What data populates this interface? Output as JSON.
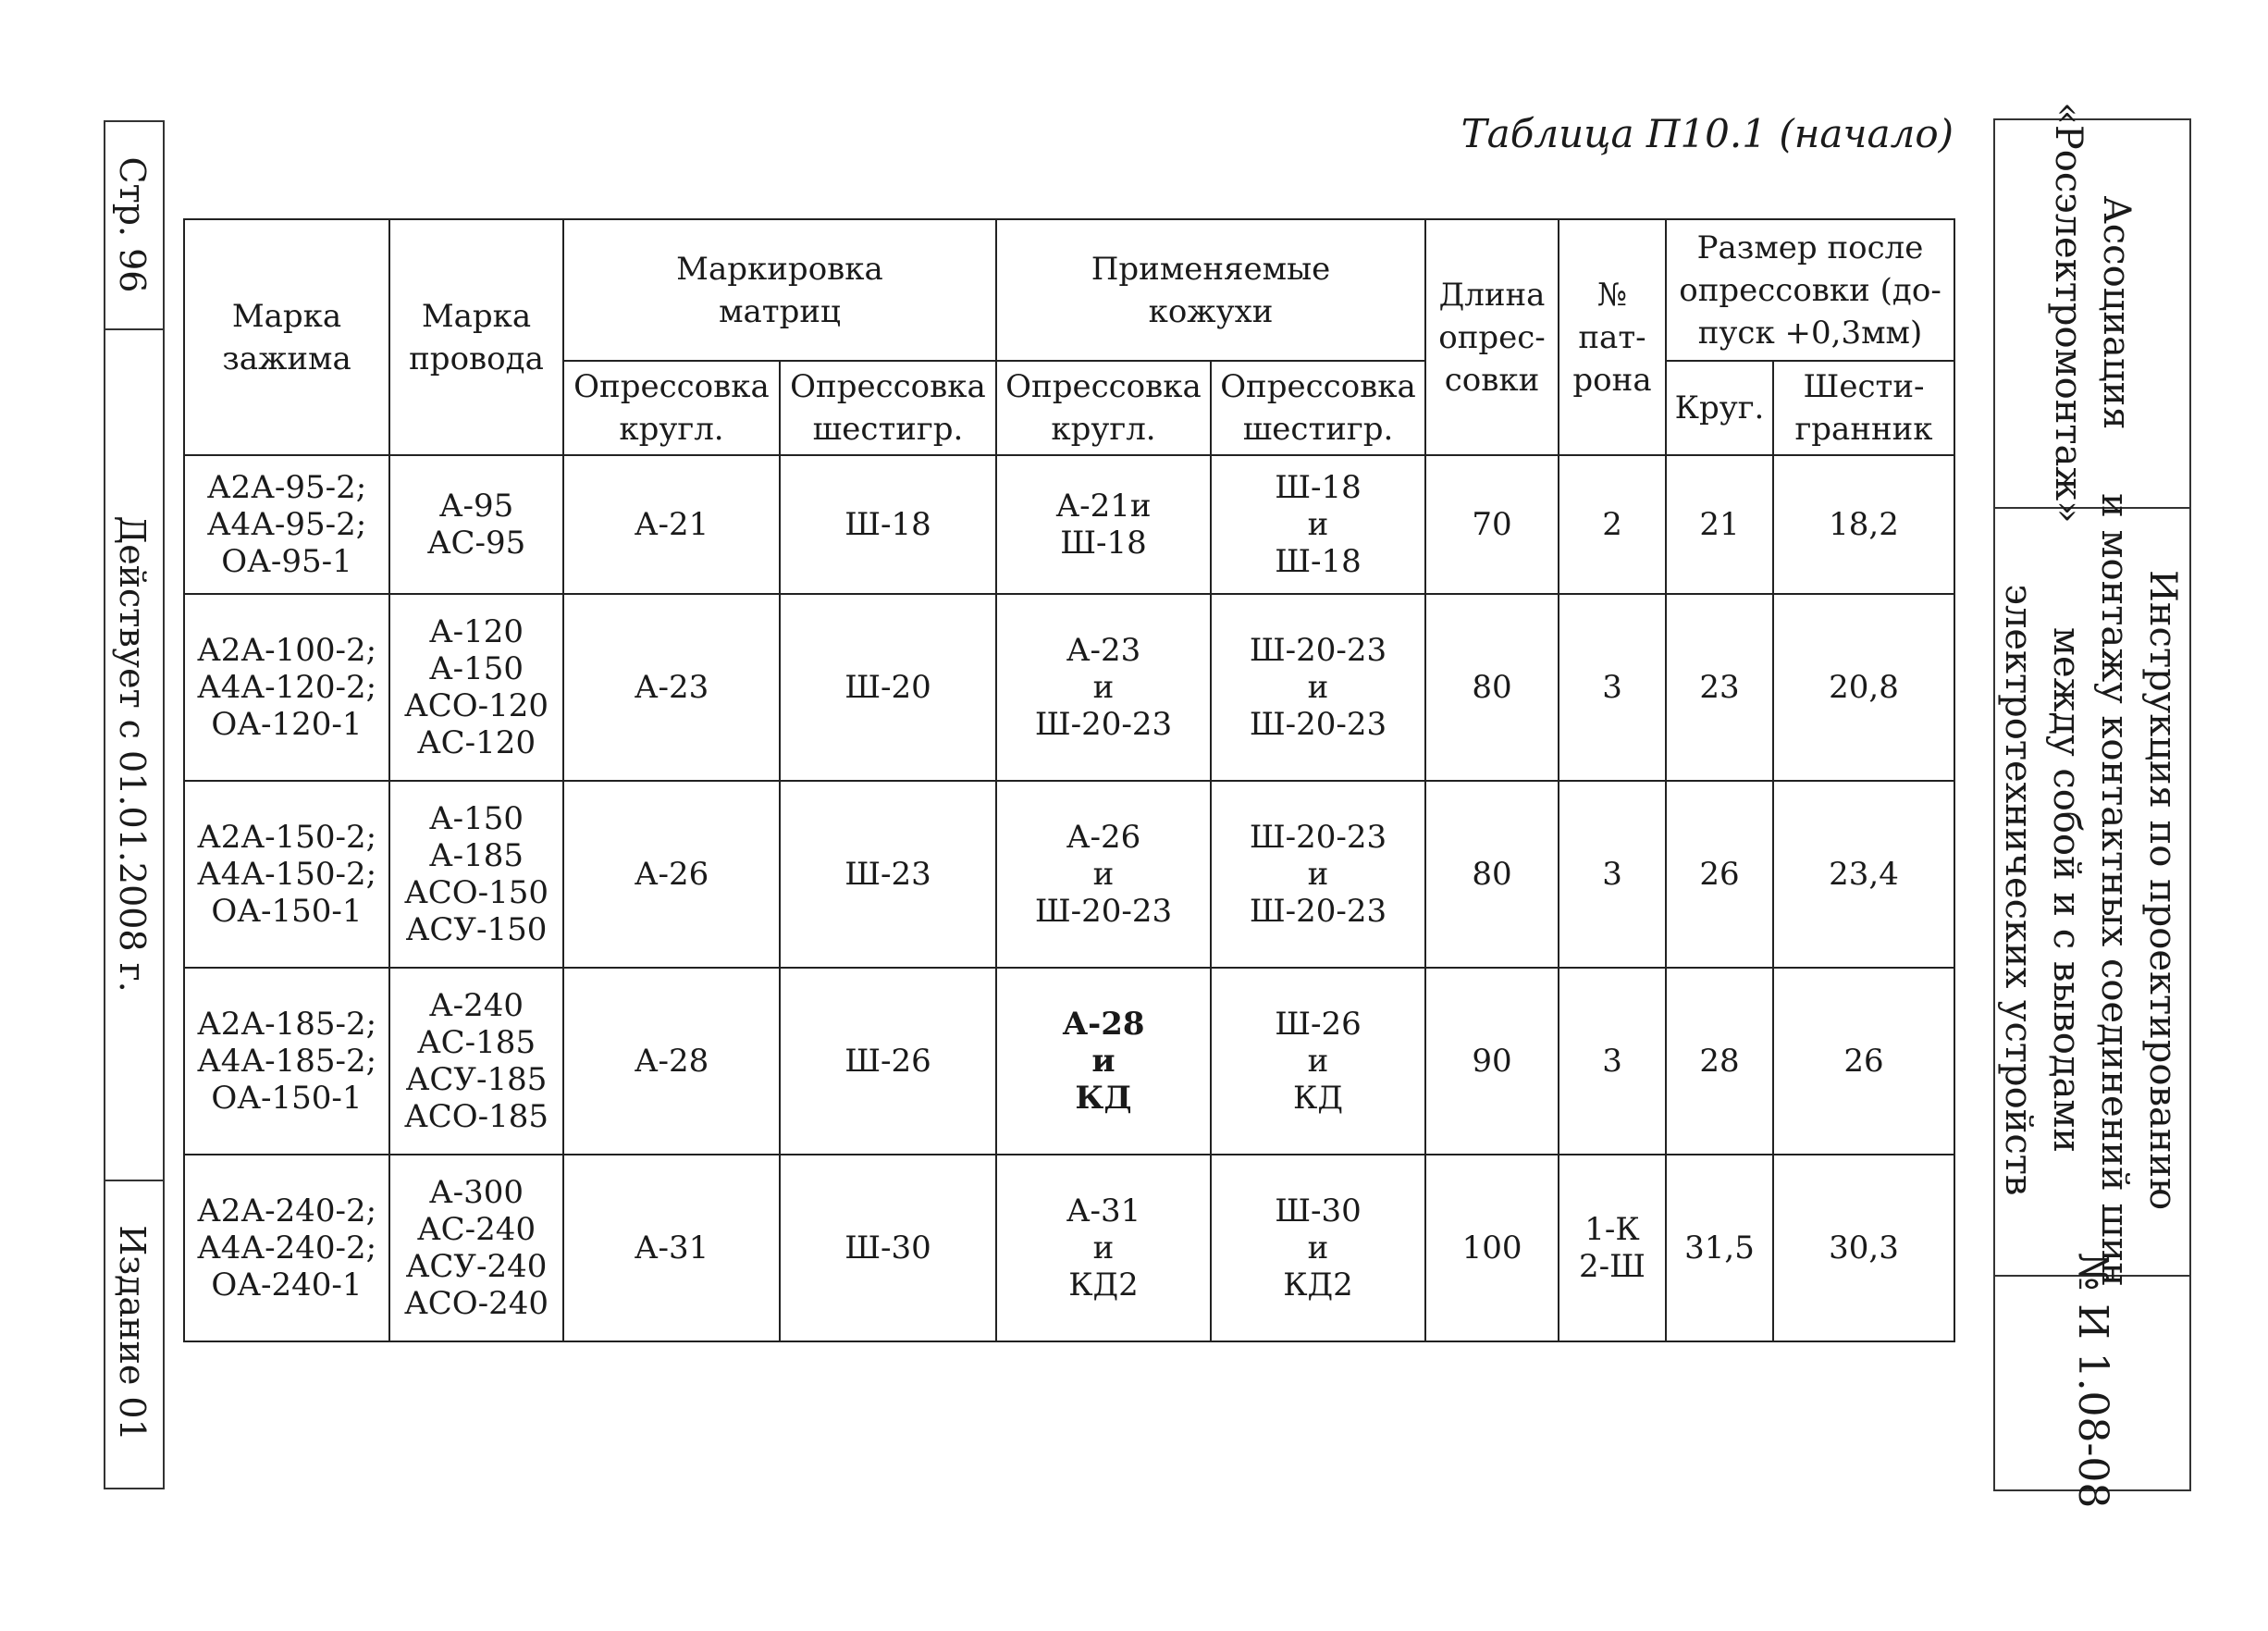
{
  "left_side": {
    "page": "Стр. 96",
    "valid_from": "Действует с 01.01.2008 г.",
    "edition": "Издание 01"
  },
  "right_side": {
    "organization_line1": "Ассоциация",
    "organization_line2": "«Росэлектромонтаж»",
    "title_line1": "Инструкция по проектированию",
    "title_line2": "и монтажу контактных соединений шин",
    "title_line3": "между собой и с выводами",
    "title_line4": "электротехнических устройств",
    "doc_number": "№ И 1.08-08"
  },
  "caption": "Таблица П10.1 (начало)",
  "table": {
    "headers": {
      "clamp": "Марка\nзажима",
      "wire": "Марка\nпровода",
      "dies_group": "Маркировка\nматриц",
      "dies_round": "Опрессовка\nкругл.",
      "dies_hex": "Опрессовка\nшестигр.",
      "sleeves_group": "Применяемые\nкожухи",
      "sleeves_round": "Опрессовка\nкругл.",
      "sleeves_hex": "Опрессовка\nшестигр.",
      "length": "Длина\nопрес-\nсовки",
      "cartridge": "№\nпат-\nрона",
      "size_group": "Размер после\nопрессовки (до-\nпуск +0,3мм)",
      "size_round": "Круг.",
      "size_hex": "Шести-\nгранник"
    },
    "rows": [
      {
        "clamp": "А2А-95-2;\nА4А-95-2;\nОА-95-1",
        "wire": "А-95\nАС-95",
        "dies_round": "А-21",
        "dies_hex": "Ш-18",
        "sleeves_round": "А-21и\nШ-18",
        "sleeves_hex": "Ш-18\nи\nШ-18",
        "length": "70",
        "cartridge": "2",
        "size_round": "21",
        "size_hex": "18,2"
      },
      {
        "clamp": "А2А-100-2;\nА4А-120-2;\nОА-120-1",
        "wire": "А-120\nА-150\nАСО-120\nАС-120",
        "dies_round": "А-23",
        "dies_hex": "Ш-20",
        "sleeves_round": "А-23\nи\nШ-20-23",
        "sleeves_hex": "Ш-20-23\nи\nШ-20-23",
        "length": "80",
        "cartridge": "3",
        "size_round": "23",
        "size_hex": "20,8"
      },
      {
        "clamp": "А2А-150-2;\nА4А-150-2;\nОА-150-1",
        "wire": "А-150\nА-185\nАСО-150\nАСУ-150",
        "dies_round": "А-26",
        "dies_hex": "Ш-23",
        "sleeves_round": "А-26\nи\nШ-20-23",
        "sleeves_hex": "Ш-20-23\nи\nШ-20-23",
        "length": "80",
        "cartridge": "3",
        "size_round": "26",
        "size_hex": "23,4"
      },
      {
        "clamp": "А2А-185-2;\nА4А-185-2;\nОА-150-1",
        "wire": "А-240\nАС-185\nАСУ-185\nАСО-185",
        "dies_round": "А-28",
        "dies_hex": "Ш-26",
        "sleeves_round": "А-28\nи\nКД",
        "sleeves_hex": "Ш-26\nи\nКД",
        "length": "90",
        "cartridge": "3",
        "size_round": "28",
        "size_hex": "26"
      },
      {
        "clamp": "А2А-240-2;\nА4А-240-2;\nОА-240-1",
        "wire": "А-300\nАС-240\nАСУ-240\nАСО-240",
        "dies_round": "А-31",
        "dies_hex": "Ш-30",
        "sleeves_round": "А-31\nи\nКД2",
        "sleeves_hex": "Ш-30\nи\nКД2",
        "length": "100",
        "cartridge": "1-К\n2-Ш",
        "size_round": "31,5",
        "size_hex": "30,3"
      }
    ]
  }
}
